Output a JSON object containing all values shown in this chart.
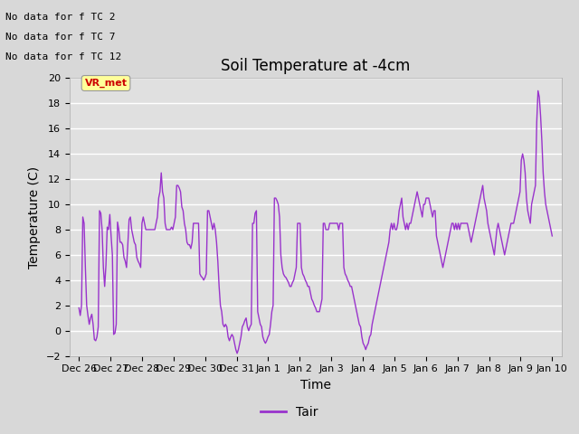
{
  "title": "Soil Temperature at -4cm",
  "xlabel": "Time",
  "ylabel": "Temperature (C)",
  "ylim": [
    -2,
    20
  ],
  "yticks": [
    -2,
    0,
    2,
    4,
    6,
    8,
    10,
    12,
    14,
    16,
    18,
    20
  ],
  "xtick_labels": [
    "Dec 26",
    "Dec 27",
    "Dec 28",
    "Dec 29",
    "Dec 30",
    "Dec 31",
    "Jan 1",
    "Jan 2",
    "Jan 3",
    "Jan 4",
    "Jan 5",
    "Jan 6",
    "Jan 7",
    "Jan 8",
    "Jan 9",
    "Jan 10"
  ],
  "line_color": "#9933cc",
  "legend_label": "Tair",
  "no_data_texts": [
    "No data for f TC 2",
    "No data for f TC 7",
    "No data for f TC 12"
  ],
  "vr_met_text": "VR_met",
  "vr_met_bg": "#ffff99",
  "vr_met_fg": "#cc0000",
  "bg_color": "#d8d8d8",
  "plot_bg_color": "#e0e0e0",
  "title_fontsize": 12,
  "axis_label_fontsize": 10,
  "tick_fontsize": 8,
  "temp_data": [
    1.8,
    1.2,
    2.0,
    9.0,
    8.5,
    5.0,
    2.0,
    1.2,
    0.5,
    1.0,
    1.3,
    0.5,
    -0.7,
    -0.8,
    -0.5,
    0.3,
    9.5,
    9.3,
    8.0,
    5.0,
    3.5,
    5.2,
    8.2,
    8.0,
    9.2,
    7.5,
    6.0,
    -0.3,
    -0.2,
    0.5,
    8.6,
    8.0,
    7.0,
    7.0,
    6.8,
    5.8,
    5.5,
    5.0,
    6.8,
    8.8,
    9.0,
    8.0,
    7.5,
    7.0,
    6.8,
    5.8,
    5.5,
    5.3,
    5.0,
    8.5,
    9.0,
    8.5,
    8.0,
    8.0,
    8.0,
    8.0,
    8.0,
    8.0,
    8.0,
    8.0,
    8.5,
    9.0,
    10.5,
    11.0,
    12.5,
    11.0,
    10.5,
    8.5,
    8.0,
    8.0,
    8.0,
    8.0,
    8.2,
    8.0,
    8.5,
    9.0,
    11.5,
    11.5,
    11.3,
    11.0,
    9.8,
    9.5,
    8.5,
    8.0,
    7.0,
    6.8,
    6.8,
    6.5,
    7.0,
    8.5,
    8.5,
    8.5,
    8.5,
    8.5,
    4.5,
    4.3,
    4.2,
    4.0,
    4.2,
    4.5,
    9.5,
    9.5,
    9.0,
    8.5,
    8.0,
    8.5,
    8.0,
    7.0,
    5.5,
    3.5,
    2.0,
    1.5,
    0.5,
    0.3,
    0.5,
    0.3,
    -0.5,
    -0.8,
    -0.5,
    -0.3,
    -0.5,
    -1.0,
    -1.5,
    -1.8,
    -1.5,
    -1.0,
    -0.5,
    0.3,
    0.5,
    0.8,
    1.0,
    0.3,
    0.0,
    0.3,
    0.5,
    8.5,
    8.5,
    9.3,
    9.5,
    1.5,
    1.0,
    0.5,
    0.3,
    -0.5,
    -0.8,
    -1.0,
    -0.8,
    -0.5,
    -0.3,
    0.5,
    1.5,
    2.0,
    10.5,
    10.5,
    10.3,
    10.0,
    9.0,
    6.0,
    5.0,
    4.5,
    4.3,
    4.2,
    4.0,
    3.8,
    3.5,
    3.5,
    3.8,
    4.0,
    4.5,
    5.0,
    8.5,
    8.5,
    8.5,
    5.0,
    4.5,
    4.3,
    4.0,
    3.8,
    3.5,
    3.5,
    3.0,
    2.5,
    2.3,
    2.0,
    1.8,
    1.5,
    1.5,
    1.5,
    2.0,
    2.5,
    8.5,
    8.5,
    8.0,
    8.0,
    8.0,
    8.5,
    8.5,
    8.5,
    8.5,
    8.5,
    8.5,
    8.5,
    8.0,
    8.5,
    8.5,
    8.5,
    5.0,
    4.5,
    4.3,
    4.0,
    3.8,
    3.5,
    3.5,
    3.0,
    2.5,
    2.0,
    1.5,
    1.0,
    0.5,
    0.3,
    -0.5,
    -1.0,
    -1.2,
    -1.5,
    -1.2,
    -1.0,
    -0.5,
    -0.3,
    0.5,
    1.0,
    1.5,
    2.0,
    2.5,
    3.0,
    3.5,
    4.0,
    4.5,
    5.0,
    5.5,
    6.0,
    6.5,
    7.0,
    8.0,
    8.5,
    8.0,
    8.5,
    8.0,
    8.0,
    8.5,
    9.5,
    10.0,
    10.5,
    9.0,
    8.5,
    8.0,
    8.5,
    8.0,
    8.5,
    8.5,
    9.0,
    9.5,
    10.0,
    10.5,
    11.0,
    10.5,
    10.0,
    9.5,
    9.0,
    10.0,
    10.0,
    10.5,
    10.5,
    10.5,
    10.0,
    9.5,
    9.0,
    9.5,
    9.5,
    7.5,
    7.0,
    6.5,
    6.0,
    5.5,
    5.0,
    5.5,
    6.0,
    6.5,
    7.0,
    7.5,
    8.0,
    8.5,
    8.5,
    8.0,
    8.5,
    8.0,
    8.5,
    8.0,
    8.5,
    8.5,
    8.5,
    8.5,
    8.5,
    8.5,
    8.0,
    7.5,
    7.0,
    7.5,
    8.0,
    8.5,
    9.0,
    9.5,
    10.0,
    10.5,
    11.0,
    11.5,
    10.5,
    10.0,
    9.5,
    8.5,
    8.0,
    7.5,
    7.0,
    6.5,
    6.0,
    7.0,
    8.0,
    8.5,
    8.0,
    7.5,
    7.0,
    6.5,
    6.0,
    6.5,
    7.0,
    7.5,
    8.0,
    8.5,
    8.5,
    8.5,
    9.0,
    9.5,
    10.0,
    10.5,
    11.0,
    13.5,
    14.0,
    13.5,
    12.5,
    10.5,
    9.5,
    9.0,
    8.5,
    10.0,
    10.5,
    11.0,
    11.5,
    16.5,
    19.0,
    18.5,
    17.0,
    15.0,
    12.5,
    11.0,
    10.0,
    9.5,
    9.0,
    8.5,
    8.0,
    7.5
  ]
}
